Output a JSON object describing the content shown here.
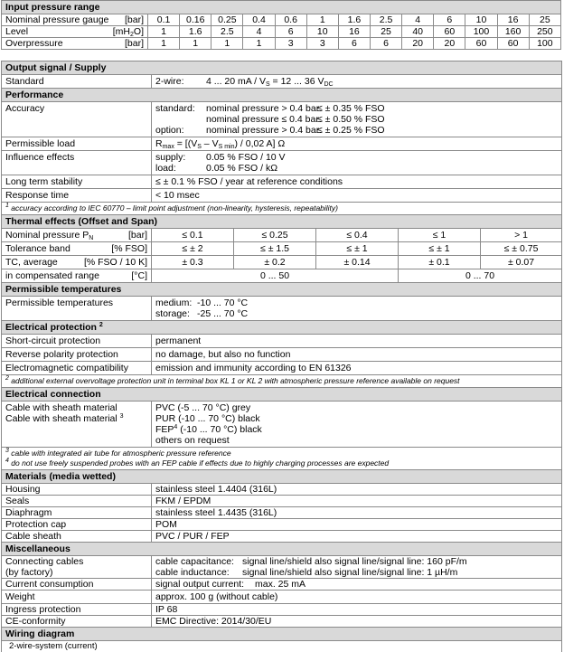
{
  "input_pressure_range": {
    "title": "Input pressure range",
    "rows": [
      {
        "label": "Nominal pressure gauge",
        "unit": [
          "[bar]"
        ],
        "values": [
          "0.1",
          "0.16",
          "0.25",
          "0.4",
          "0.6",
          "1",
          "1.6",
          "2.5",
          "4",
          "6",
          "10",
          "16",
          "25"
        ]
      },
      {
        "label": "Level",
        "unit": [
          "[mH",
          {
            "sub": "2"
          },
          "O]"
        ],
        "values": [
          "1",
          "1.6",
          "2.5",
          "4",
          "6",
          "10",
          "16",
          "25",
          "40",
          "60",
          "100",
          "160",
          "250"
        ]
      },
      {
        "label": "Overpressure",
        "unit": [
          "[bar]"
        ],
        "values": [
          "1",
          "1",
          "1",
          "1",
          "3",
          "3",
          "6",
          "6",
          "20",
          "20",
          "60",
          "60",
          "100"
        ]
      }
    ]
  },
  "specs": [
    {
      "type": "header",
      "title": [
        "Output signal / Supply"
      ]
    },
    {
      "type": "kv",
      "label": [
        "Standard"
      ],
      "lines": [
        [
          [
            "2-wire:"
          ],
          [
            "4 ... 20 mA / V",
            {
              "sub": "S"
            },
            " = 12 ... 36 V",
            {
              "sub": "DC"
            }
          ]
        ]
      ]
    },
    {
      "type": "header",
      "title": [
        "Performance"
      ]
    },
    {
      "type": "kv",
      "label": [
        "Accuracy"
      ],
      "lines": [
        [
          [
            "standard:"
          ],
          [
            "nominal pressure > 0.4 bar:"
          ],
          [
            "≤ ± 0.35 % FSO"
          ]
        ],
        [
          [
            ""
          ],
          [
            "nominal pressure ≤ 0.4 bar:"
          ],
          [
            "≤ ± 0.50 % FSO"
          ]
        ],
        [
          [
            "option:"
          ],
          [
            "nominal pressure > 0.4 bar:"
          ],
          [
            "≤ ± 0.25 % FSO"
          ]
        ]
      ]
    },
    {
      "type": "kv",
      "label": [
        "Permissible load"
      ],
      "lines": [
        [
          [
            "R",
            {
              "sub": "max"
            },
            " = [(V",
            {
              "sub": "S"
            },
            " – V",
            {
              "sub": "S min"
            },
            ") / 0,02 A] Ω"
          ]
        ]
      ]
    },
    {
      "type": "kv",
      "label": [
        "Influence effects"
      ],
      "lines": [
        [
          [
            "supply:"
          ],
          [
            "0.05 % FSO / 10 V"
          ]
        ],
        [
          [
            "load:"
          ],
          [
            "0.05 % FSO / kΩ"
          ]
        ]
      ]
    },
    {
      "type": "kv",
      "label": [
        "Long term stability"
      ],
      "lines": [
        [
          [
            "≤ ± 0.1 % FSO / year at reference conditions"
          ]
        ]
      ]
    },
    {
      "type": "kv",
      "label": [
        "Response time"
      ],
      "lines": [
        [
          [
            "< 10 msec"
          ]
        ]
      ]
    },
    {
      "type": "note",
      "lines": [
        [
          {
            "sup": "1"
          },
          " accuracy according to IEC 60770 – limit point adjustment (non-linearity, hysteresis, repeatability)"
        ]
      ]
    },
    {
      "type": "header",
      "title": [
        "Thermal effects (Offset and Span)"
      ]
    },
    {
      "type": "grid",
      "label": [
        "Nominal pressure P",
        {
          "sub": "N"
        }
      ],
      "unit": "[bar]",
      "cells": [
        {
          "text": "≤ 0.1",
          "span": 1
        },
        {
          "text": "≤ 0.25",
          "span": 1
        },
        {
          "text": "≤ 0.4",
          "span": 1
        },
        {
          "text": "≤ 1",
          "span": 1
        },
        {
          "text": "> 1",
          "span": 1
        }
      ]
    },
    {
      "type": "grid",
      "label": [
        "Tolerance band"
      ],
      "unit": "[% FSO]",
      "cells": [
        {
          "text": "≤ ± 2",
          "span": 1
        },
        {
          "text": "≤ ± 1.5",
          "span": 1
        },
        {
          "text": "≤ ± 1",
          "span": 1
        },
        {
          "text": "≤ ± 1",
          "span": 1
        },
        {
          "text": "≤ ± 0.75",
          "span": 1
        }
      ]
    },
    {
      "type": "grid",
      "label": [
        "TC, average"
      ],
      "unit": "[% FSO / 10 K]",
      "cells": [
        {
          "text": "± 0.3",
          "span": 1
        },
        {
          "text": "± 0.2",
          "span": 1
        },
        {
          "text": "± 0.14",
          "span": 1
        },
        {
          "text": "± 0.1",
          "span": 1
        },
        {
          "text": "± 0.07",
          "span": 1
        }
      ]
    },
    {
      "type": "grid",
      "label": [
        "in compensated range"
      ],
      "unit": "[°C]",
      "cells": [
        {
          "text": "0 ... 50",
          "span": 3
        },
        {
          "text": "0 ... 70",
          "span": 2
        }
      ]
    },
    {
      "type": "header",
      "title": [
        "Permissible temperatures"
      ]
    },
    {
      "type": "kv",
      "label": [
        "Permissible temperatures"
      ],
      "lines": [
        [
          [
            "medium:"
          ],
          [
            "-10 ... 70 °C"
          ]
        ],
        [
          [
            "storage:"
          ],
          [
            "-25 ... 70 °C"
          ]
        ]
      ]
    },
    {
      "type": "header",
      "title": [
        "Electrical protection ",
        {
          "sup": "2"
        }
      ]
    },
    {
      "type": "kv",
      "label": [
        "Short-circuit protection"
      ],
      "lines": [
        [
          [
            "permanent"
          ]
        ]
      ]
    },
    {
      "type": "kv",
      "label": [
        "Reverse polarity protection"
      ],
      "lines": [
        [
          [
            "no damage, but also no function"
          ]
        ]
      ]
    },
    {
      "type": "kv",
      "label": [
        "Electromagnetic compatibility"
      ],
      "lines": [
        [
          [
            "emission and immunity according to EN 61326"
          ]
        ]
      ]
    },
    {
      "type": "note",
      "lines": [
        [
          {
            "sup": "2"
          },
          " additional external overvoltage protection unit in terminal box KL 1 or KL 2 with atmospheric pressure reference available on request"
        ]
      ]
    },
    {
      "type": "header",
      "title": [
        "Electrical connection"
      ]
    },
    {
      "type": "kv",
      "label": [
        "Cable with sheath material ",
        {
          "sup": "3"
        }
      ],
      "lines": [
        [
          [
            "PVC (-5 ... 70 °C) grey"
          ]
        ],
        [
          [
            "PUR (-10 ... 70 °C) black"
          ]
        ],
        [
          [
            "FEP",
            {
              "sup": "4"
            },
            " (-10 ... 70 °C) black"
          ]
        ],
        [
          [
            "others on request"
          ]
        ]
      ]
    },
    {
      "type": "note",
      "lines": [
        [
          {
            "sup": "3"
          },
          " cable with integrated air tube for atmospheric pressure reference"
        ],
        [
          {
            "sup": "4"
          },
          " do not use freely suspended probes with an FEP cable if effects due to highly charging processes are expected"
        ]
      ]
    },
    {
      "type": "header",
      "title": [
        "Materials (media wetted)"
      ]
    },
    {
      "type": "kv",
      "thin": true,
      "label": [
        "Housing"
      ],
      "lines": [
        [
          [
            "stainless steel 1.4404 (316L)"
          ]
        ]
      ]
    },
    {
      "type": "kv",
      "thin": true,
      "label": [
        "Seals"
      ],
      "lines": [
        [
          [
            "FKM / EPDM"
          ]
        ]
      ]
    },
    {
      "type": "kv",
      "thin": true,
      "label": [
        "Diaphragm"
      ],
      "lines": [
        [
          [
            "stainless steel 1.4435 (316L)"
          ]
        ]
      ]
    },
    {
      "type": "kv",
      "thin": true,
      "label": [
        "Protection cap"
      ],
      "lines": [
        [
          [
            "POM"
          ]
        ]
      ]
    },
    {
      "type": "kv",
      "thin": true,
      "label": [
        "Cable sheath"
      ],
      "lines": [
        [
          [
            "PVC / PUR / FEP"
          ]
        ]
      ]
    },
    {
      "type": "header",
      "title": [
        "Miscellaneous"
      ]
    },
    {
      "type": "kv",
      "thin": true,
      "label": [
        "Connecting cables",
        "(by factory)"
      ],
      "lines": [
        [
          [
            "cable capacitance:"
          ],
          [
            "signal line/shield also signal line/signal line: 160 pF/m"
          ]
        ],
        [
          [
            "cable inductance:"
          ],
          [
            "signal line/shield also signal line/signal line: 1 µH/m"
          ]
        ]
      ]
    },
    {
      "type": "kv",
      "thin": true,
      "label": [
        "Current consumption"
      ],
      "lines": [
        [
          [
            "signal output current:"
          ],
          [
            "max. 25 mA"
          ]
        ]
      ]
    },
    {
      "type": "kv",
      "label": [
        "Weight"
      ],
      "lines": [
        [
          [
            "approx. 100 g (without cable)"
          ]
        ]
      ]
    },
    {
      "type": "kv",
      "thin": true,
      "label": [
        "Ingress protection"
      ],
      "lines": [
        [
          [
            "IP 68"
          ]
        ]
      ]
    },
    {
      "type": "kv",
      "thin": true,
      "label": [
        "CE-conformity"
      ],
      "lines": [
        [
          [
            "EMC Directive: 2014/30/EU"
          ]
        ]
      ]
    },
    {
      "type": "header",
      "title": [
        "Wiring diagram"
      ]
    },
    {
      "type": "text",
      "text": "2-wire-system (current)"
    }
  ]
}
